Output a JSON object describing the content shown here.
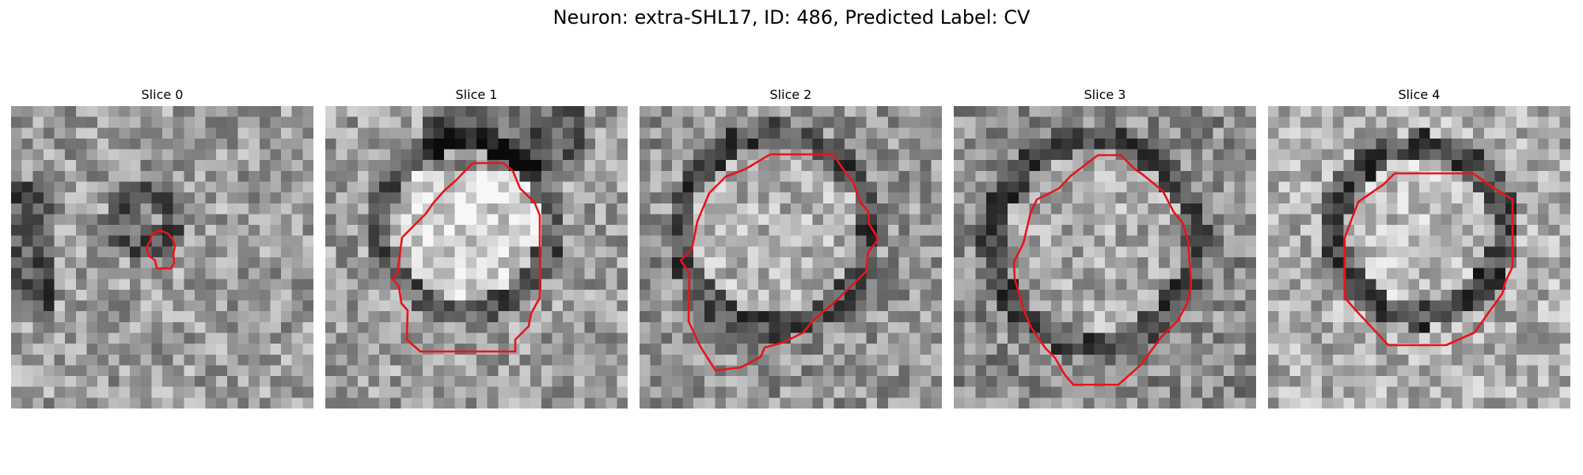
{
  "figure": {
    "title": "Neuron: extra-SHL17, ID: 486, Predicted Label: CV"
  },
  "colors": {
    "contour": "#e8141a",
    "background": "#ffffff"
  },
  "panels": [
    {
      "title": "Slice 0",
      "image": "noisy grayscale microscopy patch with a small red contour in the center"
    },
    {
      "title": "Slice 1",
      "image": "noisy grayscale microscopy patch with a bright circular vesicle outlined by a red contour"
    },
    {
      "title": "Slice 2",
      "image": "noisy grayscale microscopy patch with a circular vesicle outlined by a red contour"
    },
    {
      "title": "Slice 3",
      "image": "noisy grayscale microscopy patch with a circular vesicle outlined by a red contour"
    },
    {
      "title": "Slice 4",
      "image": "noisy grayscale microscopy patch with a circular vesicle outlined by a red contour"
    }
  ]
}
